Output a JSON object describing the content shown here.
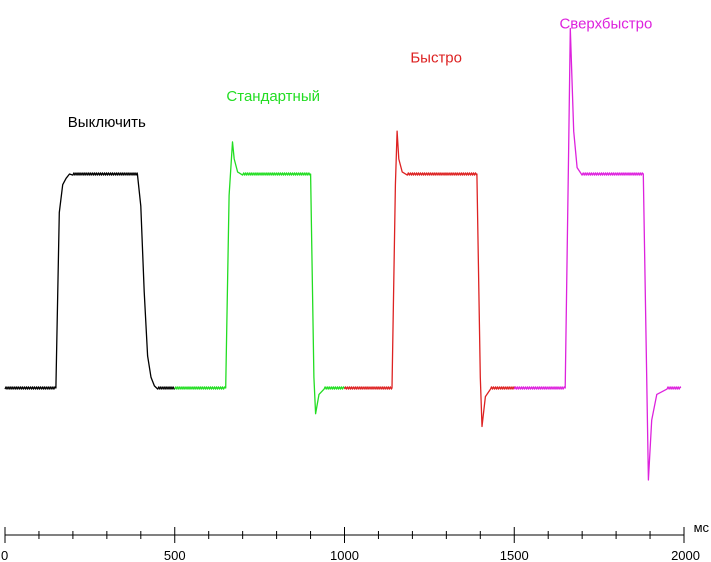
{
  "chart_data": {
    "type": "line",
    "xlabel": "мс",
    "ylabel": "",
    "xlim": [
      0,
      2000
    ],
    "ylim": [
      -0.45,
      1.65
    ],
    "x_ticks": [
      0,
      500,
      1000,
      1500,
      2000
    ],
    "x_tick_labels": [
      "0",
      "500",
      "1000",
      "1500",
      "2000"
    ],
    "grid": false,
    "legend": "none",
    "series": [
      {
        "name": "Выключить",
        "color": "#000000",
        "x": [
          0,
          150,
          160,
          170,
          180,
          190,
          200,
          390,
          400,
          410,
          420,
          430,
          440,
          450,
          500
        ],
        "values": [
          0,
          0,
          0.82,
          0.95,
          0.98,
          1.0,
          1.0,
          1.0,
          0.85,
          0.45,
          0.15,
          0.05,
          0.01,
          0,
          0
        ]
      },
      {
        "name": "Стандартный",
        "color": "#22dd22",
        "x": [
          500,
          650,
          660,
          670,
          675,
          685,
          700,
          900,
          910,
          915,
          925,
          940,
          1000
        ],
        "values": [
          0,
          0,
          0.9,
          1.15,
          1.07,
          1.01,
          1.0,
          1.0,
          0.05,
          -0.12,
          -0.03,
          0,
          0
        ]
      },
      {
        "name": "Быстро",
        "color": "#dd2222",
        "x": [
          1000,
          1140,
          1150,
          1155,
          1160,
          1170,
          1185,
          1390,
          1400,
          1405,
          1415,
          1430,
          1500
        ],
        "values": [
          0,
          0,
          0.95,
          1.2,
          1.07,
          1.01,
          1.0,
          1.0,
          0.05,
          -0.18,
          -0.04,
          0,
          0
        ]
      },
      {
        "name": "Сверхбыстро",
        "color": "#dd22dd",
        "x": [
          1500,
          1650,
          1660,
          1665,
          1675,
          1685,
          1700,
          1880,
          1890,
          1895,
          1905,
          1920,
          1950,
          1990
        ],
        "values": [
          0,
          0,
          1.1,
          1.68,
          1.2,
          1.03,
          1.0,
          1.0,
          0.05,
          -0.43,
          -0.15,
          -0.03,
          0,
          0
        ]
      }
    ],
    "annotations": [
      {
        "text": "Выключить",
        "color": "#000000",
        "x": 300,
        "y": 1.22
      },
      {
        "text": "Стандартный",
        "color": "#22dd22",
        "x": 790,
        "y": 1.34
      },
      {
        "text": "Быстро",
        "color": "#dd2222",
        "x": 1270,
        "y": 1.52
      },
      {
        "text": "Сверхбыстро",
        "color": "#dd22dd",
        "x": 1770,
        "y": 1.68
      }
    ]
  }
}
